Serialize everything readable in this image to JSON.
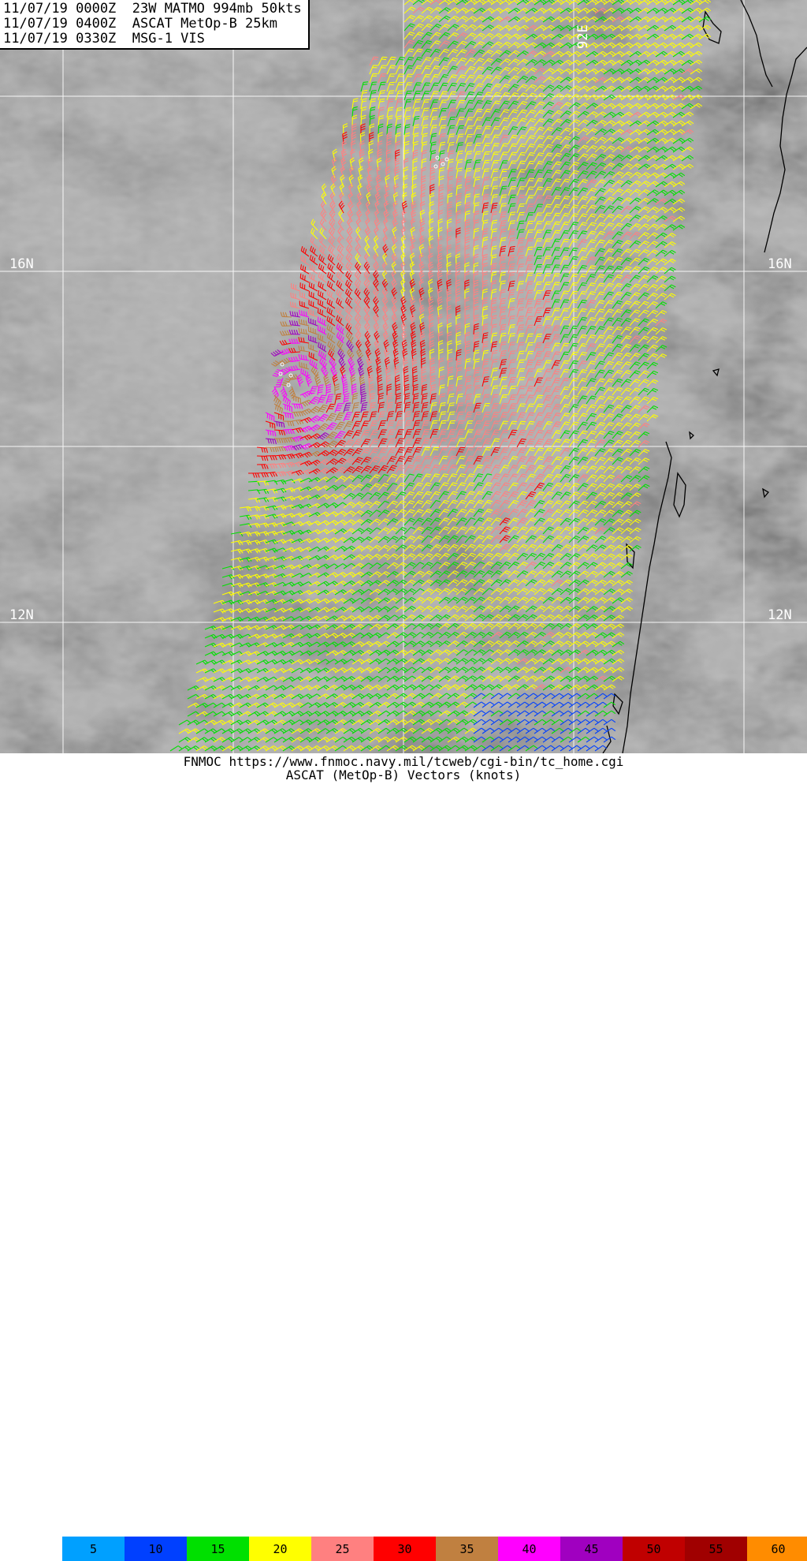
{
  "header": {
    "lines": [
      "11/07/19 0000Z  23W MATMO 994mb 50kts",
      "11/07/19 0400Z  ASCAT MetOp-B 25km",
      "11/07/19 0330Z  MSG-1 VIS"
    ]
  },
  "grid_labels": {
    "lat_16n_left": "16N",
    "lat_16n_right": "16N",
    "lat_12n_left": "12N",
    "lat_12n_right": "12N",
    "lon_92e": "92E"
  },
  "footer": {
    "source": "FNMOC https://www.fnmoc.navy.mil/tcweb/cgi-bin/tc_home.cgi",
    "title": "ASCAT (MetOp-B) Vectors (knots)"
  },
  "legend": [
    {
      "label": "5",
      "color": "#00a0ff"
    },
    {
      "label": "10",
      "color": "#0040ff"
    },
    {
      "label": "15",
      "color": "#00e000"
    },
    {
      "label": "20",
      "color": "#ffff00"
    },
    {
      "label": "25",
      "color": "#ff8080"
    },
    {
      "label": "30",
      "color": "#ff0000"
    },
    {
      "label": "35",
      "color": "#c08040"
    },
    {
      "label": "40",
      "color": "#ff00ff"
    },
    {
      "label": "45",
      "color": "#a000c0"
    },
    {
      "label": "50",
      "color": "#c00000"
    },
    {
      "label": "55",
      "color": "#a00000"
    },
    {
      "label": "60",
      "color": "#ff8c00"
    }
  ],
  "map": {
    "storm_name": "23W MATMO",
    "gridline_color": "#ffffff",
    "coastline_color": "#000000"
  }
}
